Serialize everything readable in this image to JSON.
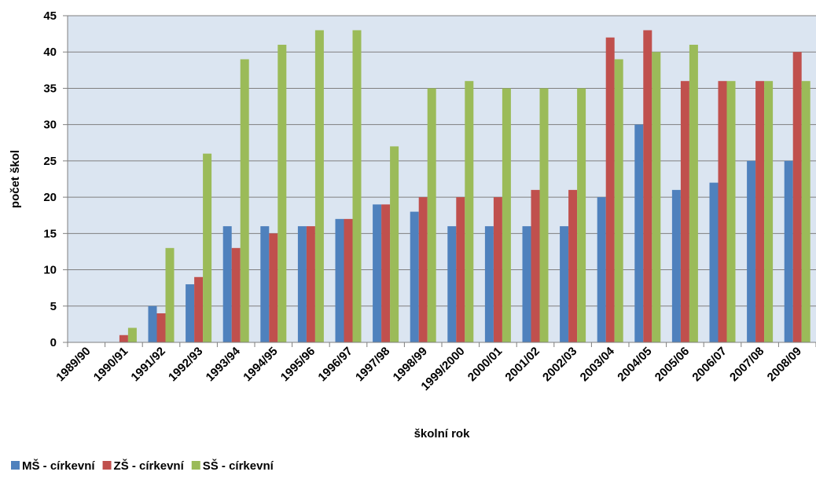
{
  "chart_data": {
    "type": "bar",
    "title": "",
    "xlabel": "školní rok",
    "ylabel": "počet škol",
    "ylim": [
      0,
      45
    ],
    "yticks": [
      0,
      5,
      10,
      15,
      20,
      25,
      30,
      35,
      40,
      45
    ],
    "grid": "horizontal",
    "legend_position": "bottom-left",
    "plot_background": "#dbe5f1",
    "categories": [
      "1989/90",
      "1990/91",
      "1991/92",
      "1992/93",
      "1993/94",
      "1994/95",
      "1995/96",
      "1996/97",
      "1997/98",
      "1998/99",
      "1999/2000",
      "2000/01",
      "2001/02",
      "2002/03",
      "2003/04",
      "2004/05",
      "2005/06",
      "2006/07",
      "2007/08",
      "2008/09"
    ],
    "series": [
      {
        "name": "MŠ - církevní",
        "color": "#4f81bd",
        "values": [
          0,
          0,
          5,
          8,
          16,
          16,
          16,
          17,
          19,
          18,
          16,
          16,
          16,
          16,
          20,
          30,
          21,
          22,
          25,
          25
        ]
      },
      {
        "name": "ZŠ - církevní",
        "color": "#c0504d",
        "values": [
          0,
          1,
          4,
          9,
          13,
          15,
          16,
          17,
          19,
          20,
          20,
          20,
          21,
          21,
          42,
          43,
          36,
          36,
          36,
          40
        ]
      },
      {
        "name": "SŠ - církevní",
        "color": "#9bbb59",
        "values": [
          0,
          2,
          13,
          26,
          39,
          41,
          43,
          43,
          27,
          35,
          36,
          35,
          35,
          35,
          39,
          40,
          41,
          36,
          36,
          36
        ]
      }
    ]
  }
}
